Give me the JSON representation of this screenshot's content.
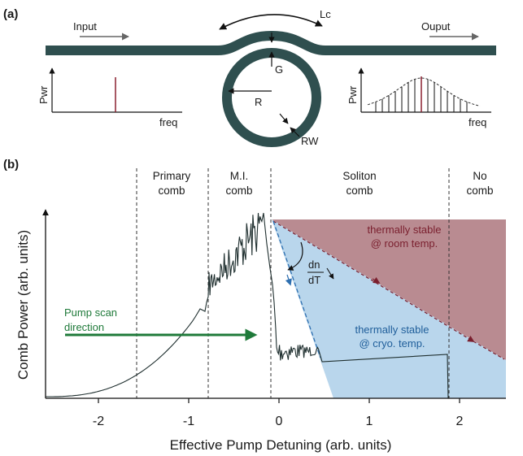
{
  "panel_a": {
    "label": "(a)",
    "input_label": "Input",
    "output_label": "Ouput",
    "lc_label": "Lc",
    "g_label": "G",
    "r_label": "R",
    "rw_label": "RW",
    "left_plot": {
      "y_label": "Pwr",
      "x_label": "freq"
    },
    "right_plot": {
      "y_label": "Pwr",
      "x_label": "freq"
    }
  },
  "panel_b": {
    "label": "(b)",
    "regions": {
      "primary_line1": "Primary",
      "primary_line2": "comb",
      "mi_line1": "M.I.",
      "mi_line2": "comb",
      "soliton_line1": "Soliton",
      "soliton_line2": "comb",
      "nocomb_line1": "No",
      "nocomb_line2": "comb"
    },
    "annotations": {
      "room_line1": "thermally stable",
      "room_line2": "@ room temp.",
      "cryo_line1": "thermally stable",
      "cryo_line2": "@ cryo. temp.",
      "pump_line1": "Pump scan",
      "pump_line2": "direction",
      "dndt_num": "dn",
      "dndt_den": "dT"
    },
    "x_axis_label": "Effective Pump Detuning (arb. units)",
    "y_axis_label": "Comb Power (arb. units)",
    "x_ticks": [
      "-2",
      "-1",
      "0",
      "1",
      "2"
    ]
  },
  "colors": {
    "waveguide": "#2f4f4f",
    "room_fill": "#b98b91",
    "cryo_fill": "#b9d6ec",
    "room_line": "#7a1f2e",
    "cryo_line": "#2e6fb0",
    "pump_arrow": "#1f7a3a",
    "spike": "#8b2030"
  }
}
